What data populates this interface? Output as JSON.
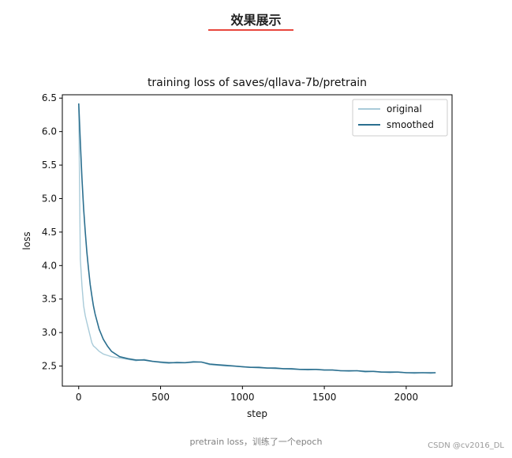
{
  "page": {
    "heading": "效果展示",
    "caption": "pretrain loss，训练了一个epoch",
    "watermark": "CSDN @cv2016_DL"
  },
  "colors": {
    "original": "#a9cbd9",
    "smoothed": "#2b6f8f",
    "heading_underline": "#e8473d"
  },
  "chart_data": {
    "type": "line",
    "title": "training loss of saves/qllava-7b/pretrain",
    "xlabel": "step",
    "ylabel": "loss",
    "xlim": [
      -100,
      2280
    ],
    "ylim": [
      2.2,
      6.55
    ],
    "xticks": [
      0,
      500,
      1000,
      1500,
      2000
    ],
    "yticks": [
      2.5,
      3.0,
      3.5,
      4.0,
      4.5,
      5.0,
      5.5,
      6.0,
      6.5
    ],
    "grid": false,
    "legend_position": "top-right",
    "series": [
      {
        "name": "original",
        "x": [
          0,
          10,
          20,
          30,
          40,
          50,
          60,
          70,
          80,
          90,
          100,
          125,
          150,
          175,
          200,
          250,
          300,
          350,
          400,
          450,
          500,
          550,
          600,
          650,
          700,
          750,
          800,
          850,
          900,
          950,
          1000,
          1050,
          1100,
          1150,
          1200,
          1250,
          1300,
          1350,
          1400,
          1450,
          1500,
          1550,
          1600,
          1650,
          1700,
          1750,
          1800,
          1850,
          1900,
          1950,
          2000,
          2050,
          2100,
          2150,
          2180
        ],
        "values": [
          6.4,
          4.1,
          3.7,
          3.4,
          3.25,
          3.15,
          3.05,
          2.95,
          2.85,
          2.8,
          2.78,
          2.72,
          2.68,
          2.66,
          2.64,
          2.62,
          2.6,
          2.58,
          2.6,
          2.57,
          2.55,
          2.54,
          2.56,
          2.55,
          2.57,
          2.56,
          2.52,
          2.51,
          2.5,
          2.5,
          2.49,
          2.48,
          2.47,
          2.47,
          2.46,
          2.46,
          2.45,
          2.45,
          2.44,
          2.45,
          2.44,
          2.44,
          2.43,
          2.42,
          2.43,
          2.41,
          2.42,
          2.41,
          2.4,
          2.41,
          2.4,
          2.39,
          2.4,
          2.39,
          2.4
        ]
      },
      {
        "name": "smoothed",
        "x": [
          0,
          10,
          20,
          30,
          40,
          50,
          60,
          70,
          80,
          90,
          100,
          125,
          150,
          175,
          200,
          250,
          300,
          350,
          400,
          450,
          500,
          550,
          600,
          650,
          700,
          750,
          800,
          850,
          900,
          950,
          1000,
          1050,
          1100,
          1150,
          1200,
          1250,
          1300,
          1350,
          1400,
          1450,
          1500,
          1550,
          1600,
          1650,
          1700,
          1750,
          1800,
          1850,
          1900,
          1950,
          2000,
          2050,
          2100,
          2150,
          2180
        ],
        "values": [
          6.42,
          5.85,
          5.3,
          4.85,
          4.5,
          4.2,
          3.95,
          3.72,
          3.55,
          3.4,
          3.28,
          3.05,
          2.9,
          2.8,
          2.72,
          2.64,
          2.61,
          2.59,
          2.59,
          2.57,
          2.56,
          2.55,
          2.55,
          2.55,
          2.56,
          2.56,
          2.53,
          2.52,
          2.51,
          2.5,
          2.49,
          2.48,
          2.48,
          2.47,
          2.47,
          2.46,
          2.46,
          2.45,
          2.45,
          2.45,
          2.44,
          2.44,
          2.43,
          2.43,
          2.43,
          2.42,
          2.42,
          2.41,
          2.41,
          2.41,
          2.4,
          2.4,
          2.4,
          2.4,
          2.4
        ]
      }
    ]
  }
}
